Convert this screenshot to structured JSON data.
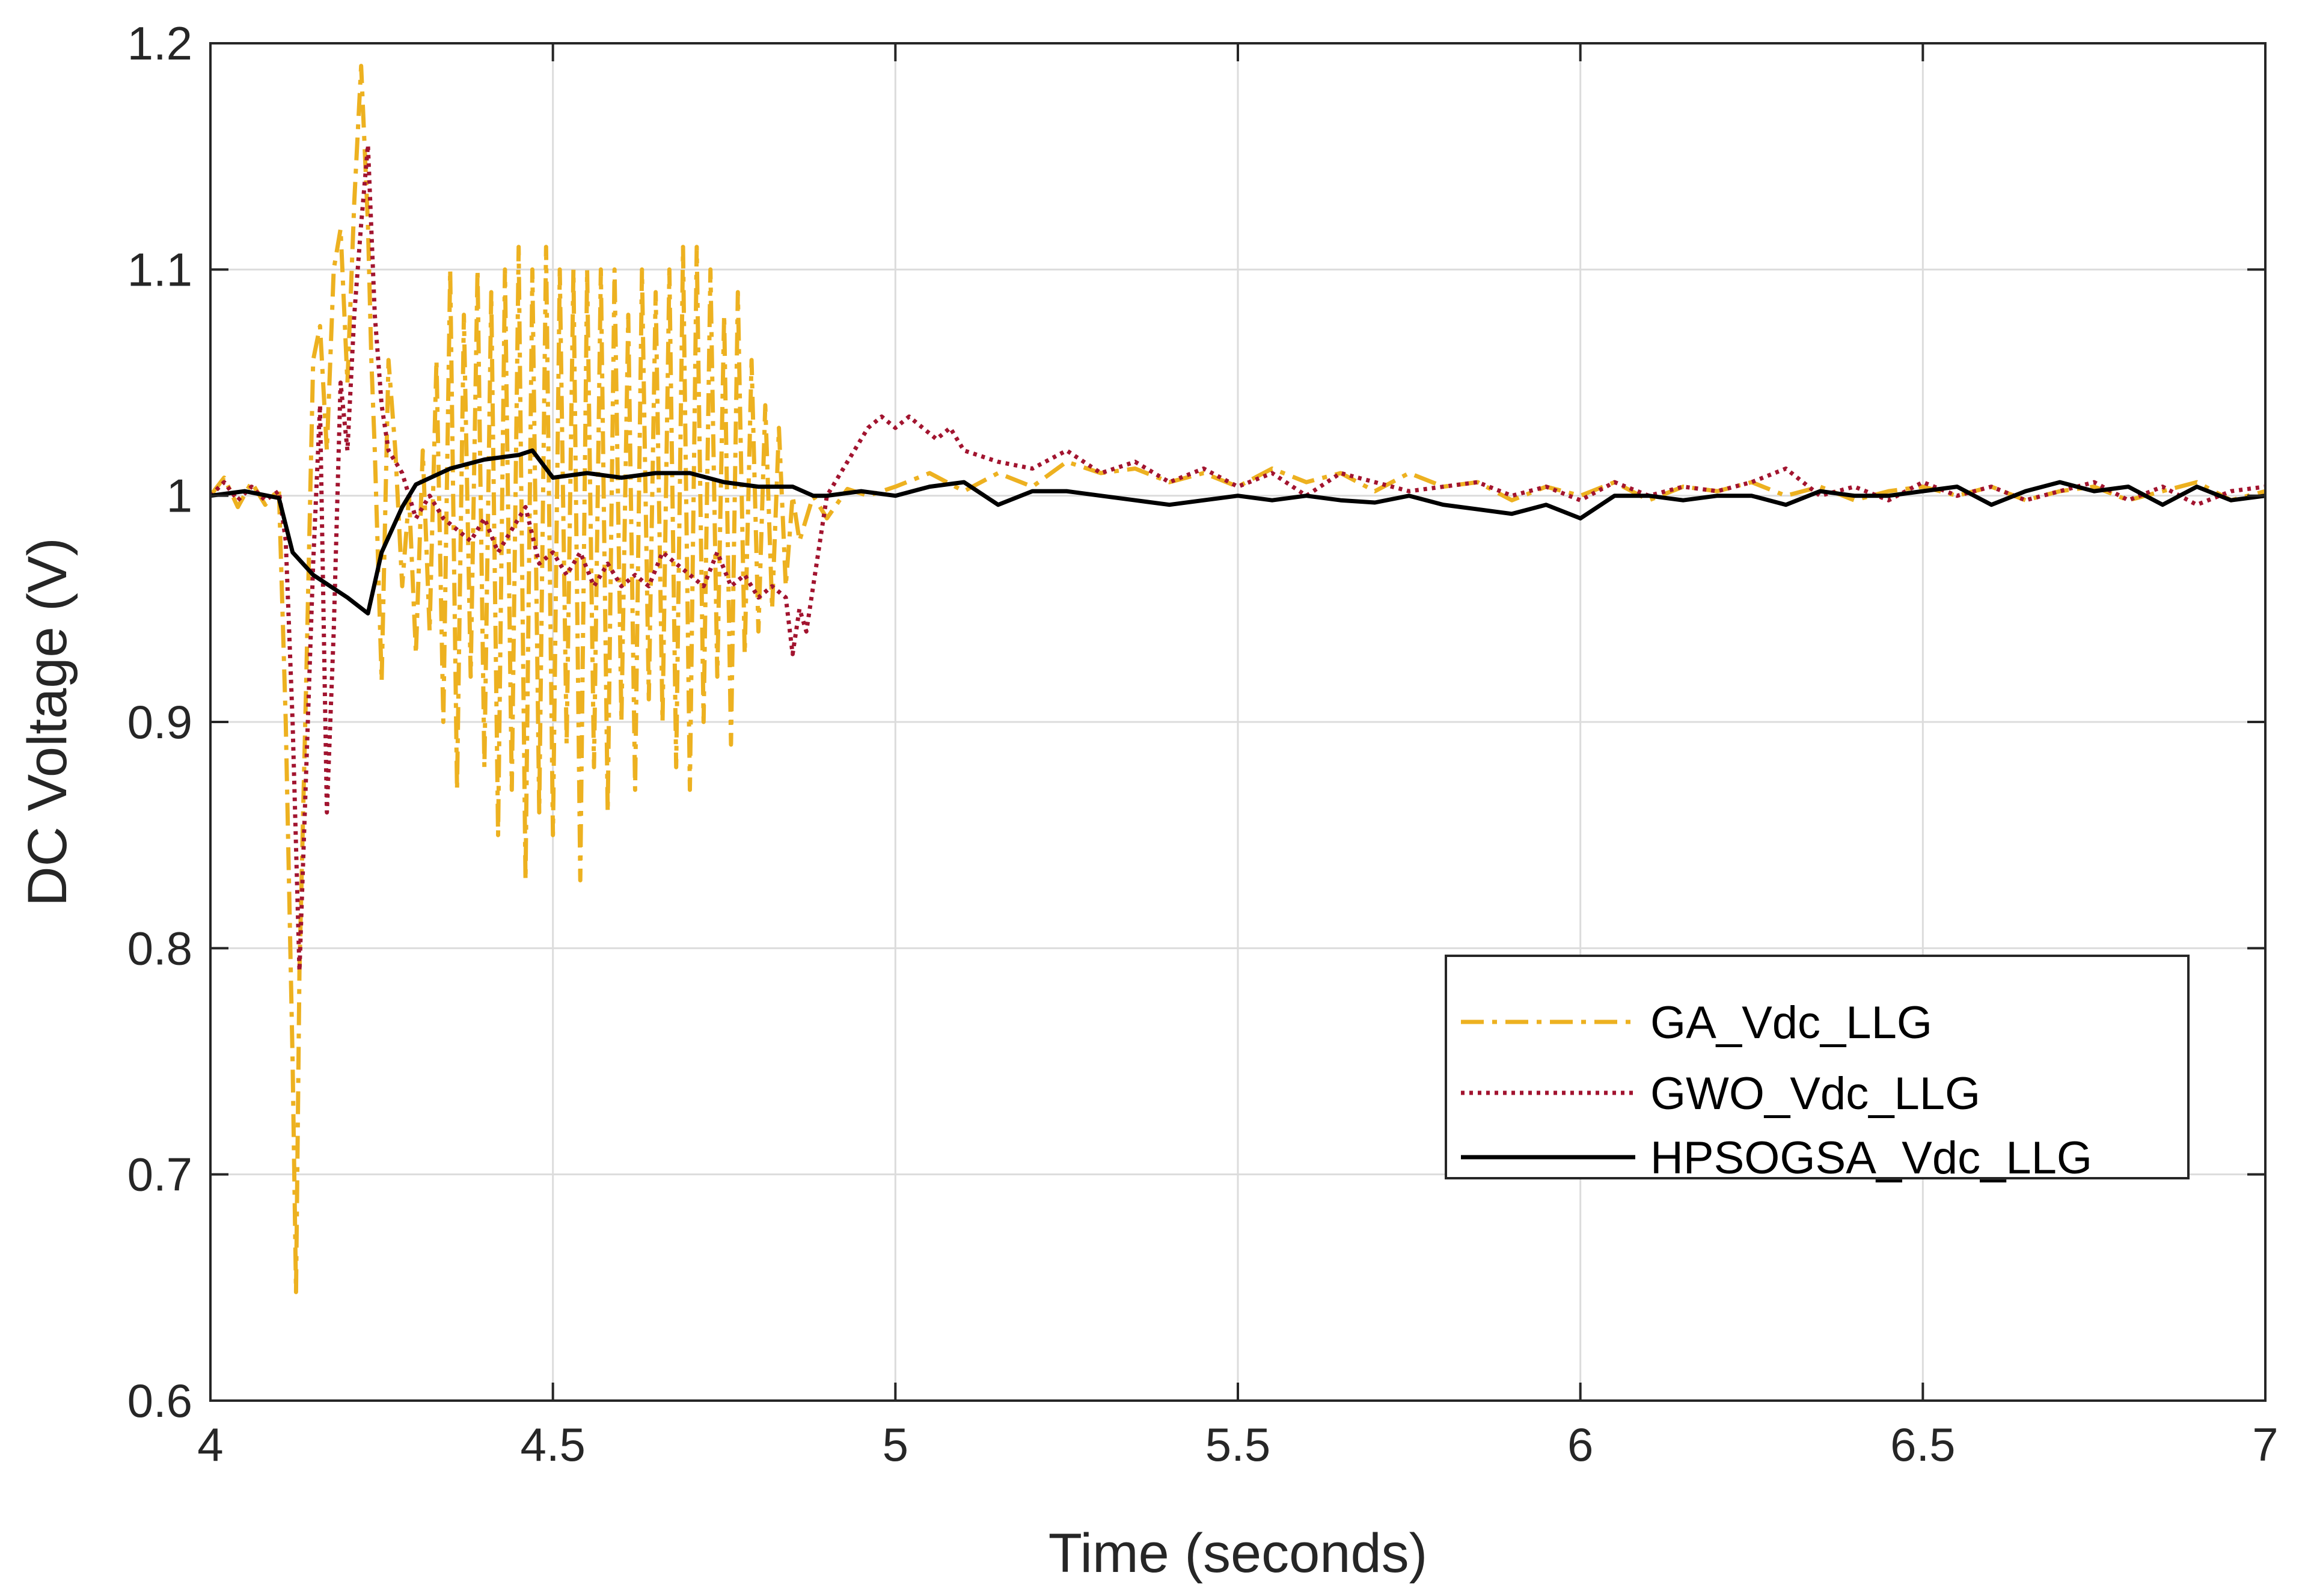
{
  "chart_data": {
    "type": "line",
    "title": "",
    "xlabel": "Time (seconds)",
    "ylabel": "DC Voltage (V)",
    "xlim": [
      4,
      7
    ],
    "ylim": [
      0.6,
      1.2
    ],
    "xticks": [
      4,
      4.5,
      5,
      5.5,
      6,
      6.5,
      7
    ],
    "xtick_labels": [
      "4",
      "4.5",
      "5",
      "5.5",
      "6",
      "6.5",
      "7"
    ],
    "yticks": [
      0.6,
      0.7,
      0.8,
      0.9,
      1.0,
      1.1,
      1.2
    ],
    "ytick_labels": [
      "0.6",
      "0.7",
      "0.8",
      "0.9",
      "1",
      "1.1",
      "1.2"
    ],
    "grid": true,
    "legend_position": "right",
    "series": [
      {
        "name": "GA_Vdc_LLG",
        "color": "#EDB120",
        "style": "dash-dot",
        "x": [
          4.0,
          4.02,
          4.04,
          4.06,
          4.08,
          4.1,
          4.11,
          4.12,
          4.125,
          4.13,
          4.14,
          4.15,
          4.16,
          4.17,
          4.18,
          4.19,
          4.2,
          4.21,
          4.22,
          4.23,
          4.235,
          4.24,
          4.25,
          4.26,
          4.27,
          4.28,
          4.29,
          4.3,
          4.31,
          4.32,
          4.33,
          4.34,
          4.35,
          4.36,
          4.37,
          4.38,
          4.39,
          4.4,
          4.41,
          4.42,
          4.43,
          4.44,
          4.45,
          4.46,
          4.47,
          4.48,
          4.49,
          4.5,
          4.51,
          4.52,
          4.53,
          4.54,
          4.55,
          4.56,
          4.57,
          4.58,
          4.59,
          4.6,
          4.61,
          4.62,
          4.63,
          4.64,
          4.65,
          4.66,
          4.67,
          4.68,
          4.69,
          4.7,
          4.71,
          4.72,
          4.73,
          4.74,
          4.75,
          4.76,
          4.77,
          4.78,
          4.79,
          4.8,
          4.81,
          4.82,
          4.83,
          4.84,
          4.85,
          4.86,
          4.88,
          4.9,
          4.93,
          4.96,
          5.0,
          5.05,
          5.1,
          5.15,
          5.2,
          5.25,
          5.3,
          5.35,
          5.4,
          5.45,
          5.5,
          5.55,
          5.6,
          5.65,
          5.7,
          5.75,
          5.8,
          5.85,
          5.9,
          5.95,
          6.0,
          6.05,
          6.1,
          6.15,
          6.2,
          6.25,
          6.3,
          6.35,
          6.4,
          6.45,
          6.5,
          6.55,
          6.6,
          6.65,
          6.7,
          6.75,
          6.8,
          6.85,
          6.9,
          6.95,
          7.0
        ],
        "y": [
          1.0,
          1.008,
          0.995,
          1.006,
          0.996,
          1.003,
          0.9,
          0.75,
          0.648,
          0.79,
          0.92,
          1.06,
          1.075,
          1.02,
          1.1,
          1.118,
          1.05,
          1.13,
          1.19,
          1.12,
          1.06,
          1.02,
          0.918,
          1.06,
          1.02,
          0.96,
          1.0,
          0.93,
          1.02,
          0.94,
          1.06,
          0.9,
          1.1,
          0.87,
          1.08,
          0.92,
          1.1,
          0.88,
          1.09,
          0.85,
          1.1,
          0.87,
          1.11,
          0.83,
          1.1,
          0.86,
          1.11,
          0.85,
          1.1,
          0.89,
          1.1,
          0.83,
          1.1,
          0.88,
          1.1,
          0.86,
          1.1,
          0.9,
          1.08,
          0.87,
          1.1,
          0.91,
          1.09,
          0.9,
          1.1,
          0.88,
          1.11,
          0.87,
          1.11,
          0.9,
          1.1,
          0.92,
          1.08,
          0.89,
          1.09,
          0.93,
          1.06,
          0.94,
          1.04,
          0.95,
          1.03,
          0.96,
          1.0,
          0.98,
          1.0,
          0.99,
          1.003,
          1.0,
          1.004,
          1.01,
          1.002,
          1.01,
          1.004,
          1.015,
          1.01,
          1.012,
          1.006,
          1.01,
          1.004,
          1.012,
          1.006,
          1.01,
          1.002,
          1.01,
          1.004,
          1.006,
          0.998,
          1.004,
          1.0,
          1.006,
          0.998,
          1.004,
          1.002,
          1.006,
          1.0,
          1.004,
          0.998,
          1.002,
          1.004,
          1.0,
          1.004,
          0.998,
          1.002,
          1.004,
          0.998,
          1.002,
          1.006,
          0.998,
          1.002
        ]
      },
      {
        "name": "GWO_Vdc_LLG",
        "color": "#A2142F",
        "style": "dotted",
        "x": [
          4.0,
          4.02,
          4.04,
          4.06,
          4.08,
          4.1,
          4.11,
          4.12,
          4.13,
          4.14,
          4.15,
          4.16,
          4.17,
          4.18,
          4.19,
          4.2,
          4.21,
          4.22,
          4.23,
          4.24,
          4.25,
          4.26,
          4.28,
          4.3,
          4.32,
          4.34,
          4.36,
          4.38,
          4.4,
          4.42,
          4.44,
          4.46,
          4.48,
          4.5,
          4.52,
          4.54,
          4.56,
          4.58,
          4.6,
          4.62,
          4.64,
          4.66,
          4.68,
          4.7,
          4.72,
          4.74,
          4.76,
          4.78,
          4.8,
          4.82,
          4.84,
          4.85,
          4.86,
          4.87,
          4.88,
          4.89,
          4.9,
          4.92,
          4.94,
          4.96,
          4.98,
          5.0,
          5.02,
          5.04,
          5.06,
          5.08,
          5.1,
          5.15,
          5.2,
          5.25,
          5.3,
          5.35,
          5.4,
          5.45,
          5.5,
          5.55,
          5.6,
          5.65,
          5.7,
          5.75,
          5.8,
          5.85,
          5.9,
          5.95,
          6.0,
          6.05,
          6.1,
          6.15,
          6.2,
          6.25,
          6.3,
          6.35,
          6.4,
          6.45,
          6.5,
          6.55,
          6.6,
          6.65,
          6.7,
          6.75,
          6.8,
          6.85,
          6.9,
          6.95,
          7.0
        ],
        "y": [
          1.0,
          1.006,
          0.998,
          1.004,
          0.998,
          1.002,
          0.98,
          0.9,
          0.79,
          0.88,
          0.97,
          1.04,
          0.86,
          0.94,
          1.05,
          1.02,
          1.08,
          1.12,
          1.155,
          1.08,
          1.04,
          1.02,
          1.01,
          0.99,
          1.0,
          0.99,
          0.985,
          0.98,
          0.99,
          0.975,
          0.985,
          0.995,
          0.97,
          0.975,
          0.965,
          0.975,
          0.96,
          0.97,
          0.96,
          0.965,
          0.96,
          0.975,
          0.97,
          0.965,
          0.96,
          0.975,
          0.96,
          0.965,
          0.955,
          0.96,
          0.955,
          0.93,
          0.95,
          0.94,
          0.96,
          0.98,
          1.0,
          1.01,
          1.02,
          1.03,
          1.035,
          1.03,
          1.035,
          1.03,
          1.025,
          1.03,
          1.02,
          1.015,
          1.012,
          1.02,
          1.01,
          1.015,
          1.006,
          1.012,
          1.004,
          1.01,
          1.0,
          1.01,
          1.006,
          1.002,
          1.004,
          1.006,
          1.0,
          1.004,
          0.998,
          1.006,
          1.0,
          1.004,
          1.002,
          1.006,
          1.012,
          1.0,
          1.004,
          0.998,
          1.006,
          1.0,
          1.004,
          0.998,
          1.002,
          1.006,
          0.998,
          1.004,
          0.996,
          1.002,
          1.004
        ]
      },
      {
        "name": "HPSOGSA_Vdc_LLG",
        "color": "#000000",
        "style": "solid",
        "x": [
          4.0,
          4.05,
          4.1,
          4.12,
          4.15,
          4.2,
          4.23,
          4.25,
          4.28,
          4.3,
          4.35,
          4.4,
          4.45,
          4.47,
          4.5,
          4.55,
          4.6,
          4.65,
          4.7,
          4.75,
          4.8,
          4.85,
          4.88,
          4.9,
          4.95,
          5.0,
          5.05,
          5.1,
          5.15,
          5.2,
          5.25,
          5.3,
          5.35,
          5.4,
          5.45,
          5.5,
          5.55,
          5.6,
          5.65,
          5.7,
          5.75,
          5.8,
          5.85,
          5.9,
          5.95,
          6.0,
          6.05,
          6.1,
          6.15,
          6.2,
          6.25,
          6.3,
          6.35,
          6.4,
          6.45,
          6.5,
          6.55,
          6.6,
          6.65,
          6.7,
          6.75,
          6.8,
          6.85,
          6.9,
          6.95,
          7.0
        ],
        "y": [
          1.0,
          1.002,
          0.999,
          0.975,
          0.965,
          0.955,
          0.948,
          0.975,
          0.995,
          1.005,
          1.012,
          1.016,
          1.018,
          1.02,
          1.008,
          1.01,
          1.008,
          1.01,
          1.01,
          1.006,
          1.004,
          1.004,
          1.0,
          1.0,
          1.002,
          1.0,
          1.004,
          1.006,
          0.996,
          1.002,
          1.002,
          1.0,
          0.998,
          0.996,
          0.998,
          1.0,
          0.998,
          1.0,
          0.998,
          0.997,
          1.0,
          0.996,
          0.994,
          0.992,
          0.996,
          0.99,
          1.0,
          1.0,
          0.998,
          1.0,
          1.0,
          0.996,
          1.002,
          1.0,
          1.0,
          1.002,
          1.004,
          0.996,
          1.002,
          1.006,
          1.002,
          1.004,
          0.996,
          1.004,
          0.998,
          1.0
        ]
      }
    ]
  }
}
